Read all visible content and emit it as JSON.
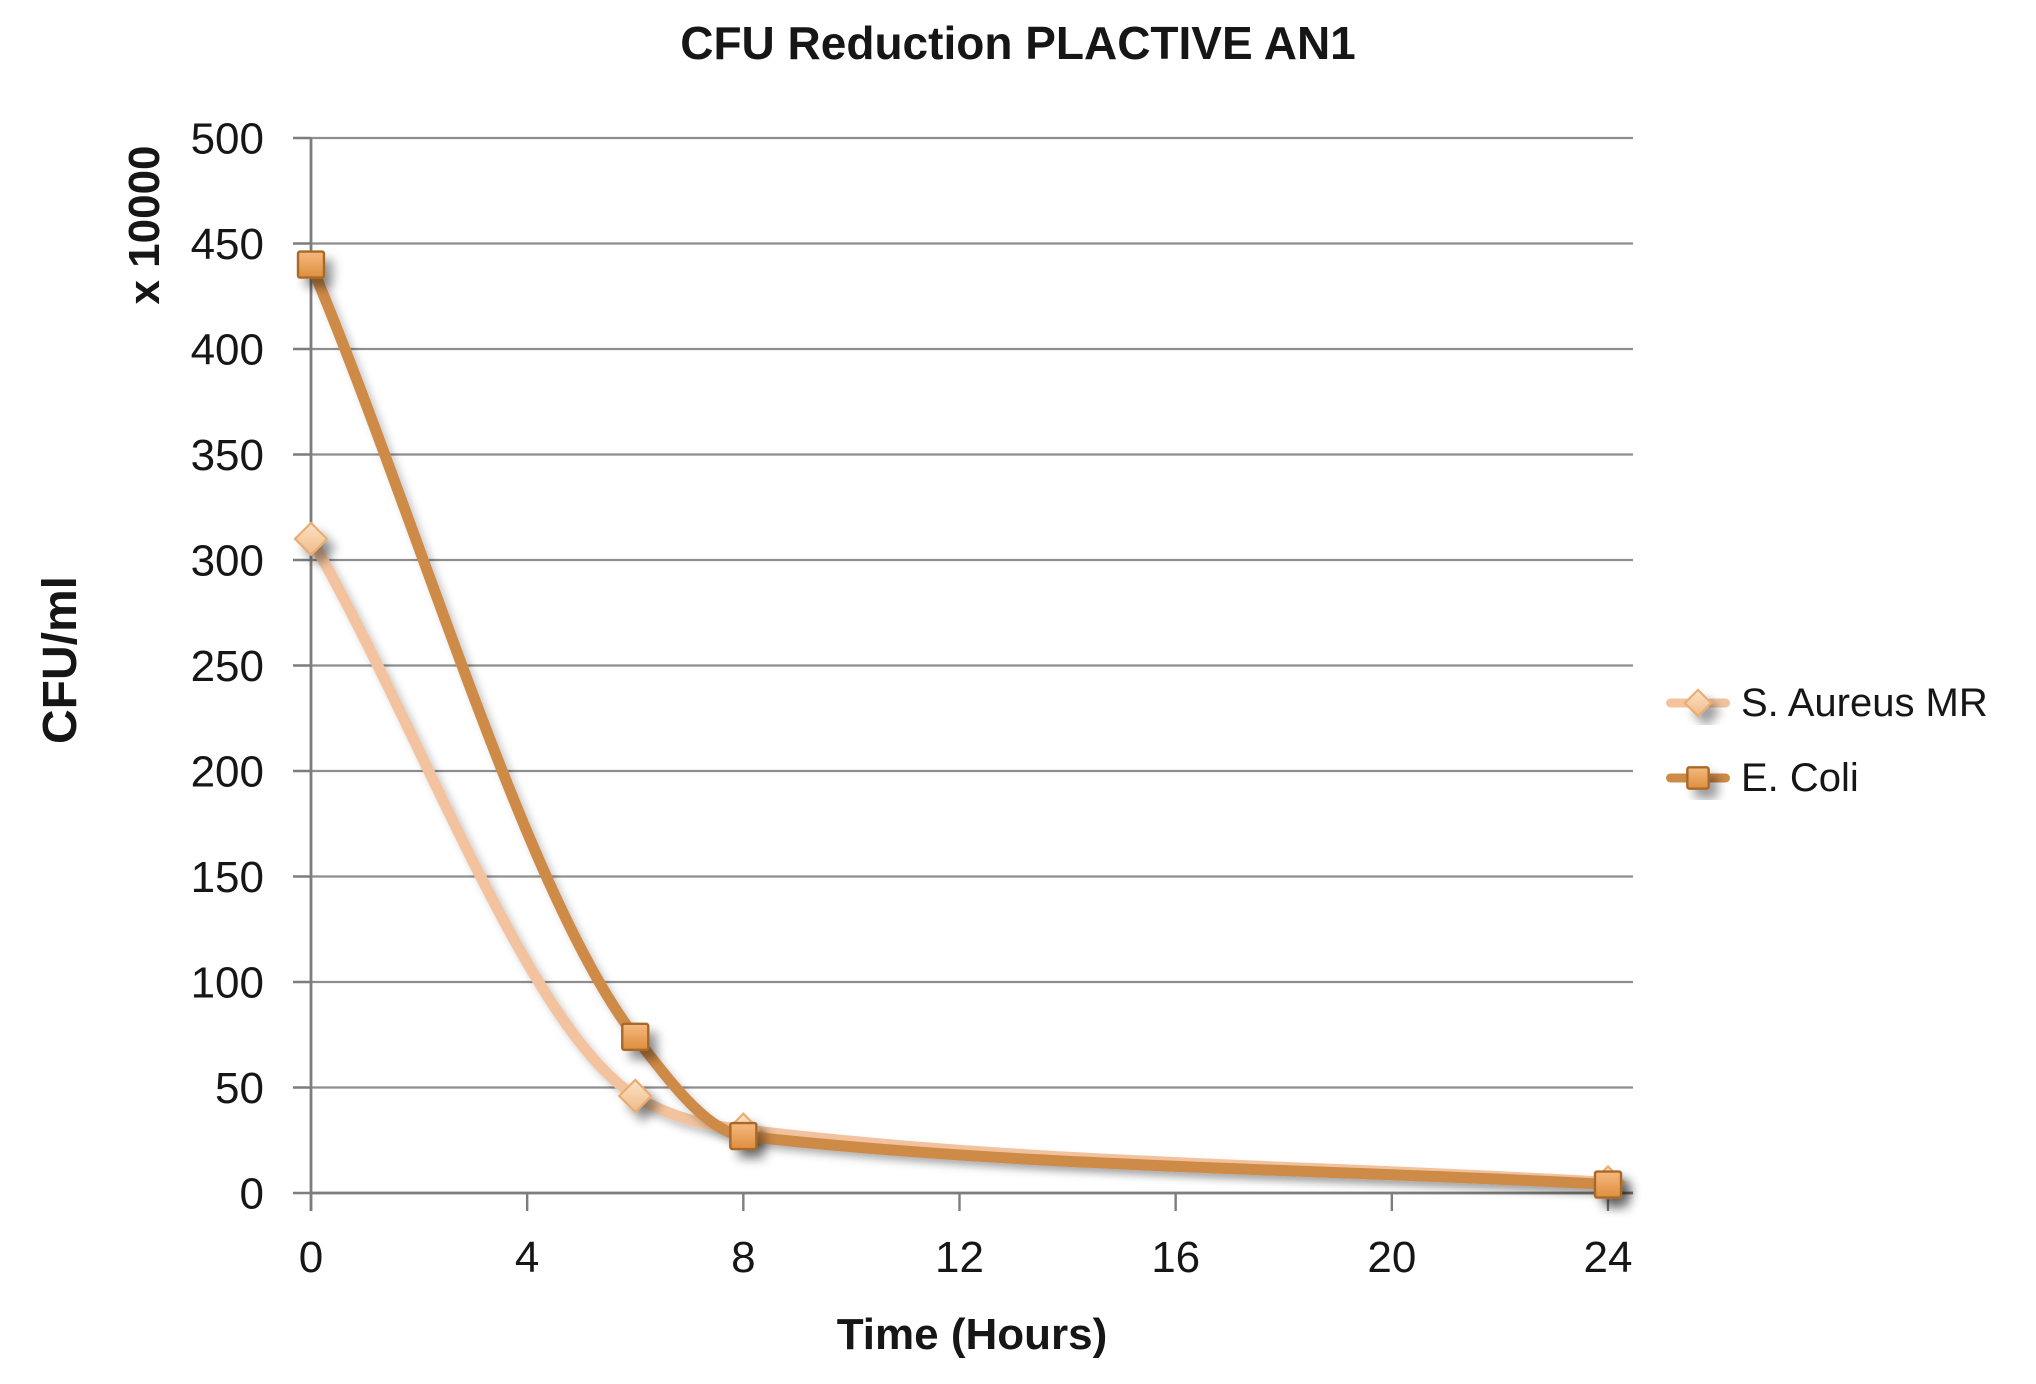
{
  "chart_data": {
    "type": "line",
    "title": "CFU Reduction PLACTIVE AN1",
    "xlabel": "Time (Hours)",
    "ylabel": "CFU/ml",
    "ylabel_unit": "x 10000",
    "x": [
      0,
      6,
      8,
      24
    ],
    "series": [
      {
        "name": "S. Aureus MR",
        "values": [
          310,
          46,
          30,
          5
        ],
        "marker": "diamond",
        "line_color": "#F2C39E",
        "marker_fill_top": "#FBE3C6",
        "marker_fill_bottom": "#F1B989",
        "marker_border": "#E9AD72"
      },
      {
        "name": "E. Coli",
        "values": [
          440,
          74,
          27,
          4
        ],
        "marker": "square",
        "line_color": "#CE8A47",
        "marker_fill_top": "#F5B97F",
        "marker_fill_bottom": "#DE8E3E",
        "marker_border": "#A96928"
      }
    ],
    "xlim": [
      0,
      24
    ],
    "ylim": [
      0,
      500
    ],
    "x_ticks": [
      0,
      4,
      8,
      12,
      16,
      20,
      24
    ],
    "y_ticks": [
      0,
      50,
      100,
      150,
      200,
      250,
      300,
      350,
      400,
      450,
      500
    ],
    "grid": "horizontal",
    "smooth": true,
    "legend_position": "right"
  },
  "colors": {
    "background": "#FFFFFF",
    "text": "#161616",
    "gridline": "#8E8E8E",
    "axis": "#7D7D7D"
  }
}
